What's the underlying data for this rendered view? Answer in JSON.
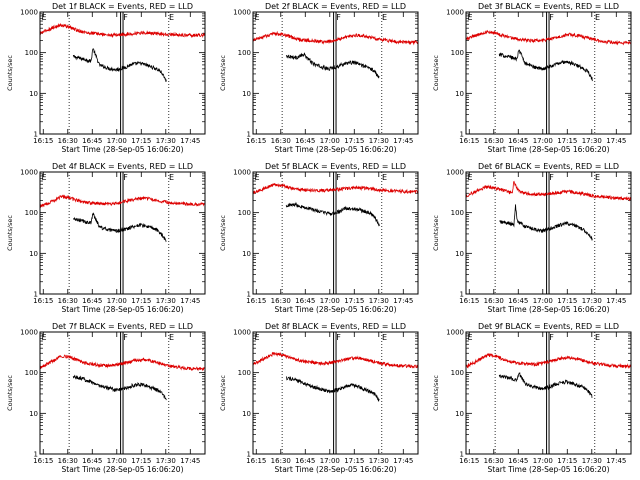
{
  "chart_data": {
    "type": "line",
    "layout": "3x3 grid",
    "common": {
      "ylabel": "Counts/sec",
      "xlabel": "Start Time (28-Sep-05 16:06:20)",
      "yscale": "log",
      "ylim": [
        1,
        1000
      ],
      "xlim_min": [
        6.67,
        107.67
      ],
      "y_ticks": [
        1,
        10,
        100,
        1000
      ],
      "y_tick_labels": [
        "1",
        "10",
        "100",
        "1000"
      ],
      "x_ticks_min": [
        8.67,
        23.67,
        38.67,
        53.67,
        68.67,
        83.67,
        98.67
      ],
      "x_tick_labels": [
        "16:15",
        "16:30",
        "16:45",
        "17:00",
        "17:15",
        "17:30",
        "17:45"
      ],
      "dotted_lines_min": [
        24.5,
        85.5
      ],
      "solid_lines_min": [
        56.0,
        57.5
      ],
      "markers": [
        {
          "label": "E",
          "min": 7.0
        },
        {
          "label": "F",
          "min": 57.0
        },
        {
          "label": "E",
          "min": 85.0
        }
      ],
      "series_colors": {
        "events": "#000000",
        "lld": "#dd0000"
      },
      "events_range_min": [
        27,
        84
      ],
      "lld_range_min": [
        6.67,
        107.67
      ]
    },
    "panels": [
      {
        "title": "Det 1f BLACK = Events, RED = LLD",
        "series": [
          {
            "name": "Events",
            "x": [
              27,
              33,
              38,
              39,
              43,
              48,
              53,
              58,
              63,
              68,
              73,
              78,
              81,
              84
            ],
            "y": [
              80,
              70,
              62,
              130,
              50,
              42,
              38,
              42,
              52,
              55,
              48,
              40,
              33,
              20
            ]
          },
          {
            "name": "LLD",
            "x": [
              6.67,
              15,
              20,
              25,
              30,
              35,
              40,
              45,
              50,
              55,
              60,
              65,
              70,
              75,
              80,
              85,
              90,
              95,
              100,
              107.67
            ],
            "y": [
              300,
              420,
              480,
              420,
              350,
              310,
              300,
              280,
              270,
              275,
              285,
              300,
              310,
              305,
              290,
              280,
              275,
              270,
              270,
              270
            ]
          }
        ]
      },
      {
        "title": "Det 2f BLACK = Events, RED = LLD",
        "series": [
          {
            "name": "Events",
            "x": [
              27,
              33,
              38,
              43,
              48,
              53,
              58,
              63,
              68,
              73,
              78,
              81,
              84
            ],
            "y": [
              85,
              75,
              90,
              55,
              45,
              40,
              45,
              55,
              58,
              50,
              42,
              35,
              25
            ]
          },
          {
            "name": "LLD",
            "x": [
              6.67,
              15,
              20,
              25,
              30,
              35,
              40,
              45,
              50,
              55,
              60,
              65,
              70,
              75,
              80,
              85,
              90,
              95,
              100,
              107.67
            ],
            "y": [
              200,
              260,
              300,
              280,
              240,
              210,
              200,
              190,
              185,
              195,
              220,
              250,
              270,
              255,
              230,
              210,
              195,
              185,
              180,
              180
            ]
          }
        ]
      },
      {
        "title": "Det 3f BLACK = Events, RED = LLD",
        "series": [
          {
            "name": "Events",
            "x": [
              27,
              33,
              38,
              39,
              43,
              48,
              53,
              58,
              63,
              68,
              73,
              78,
              81,
              84
            ],
            "y": [
              90,
              80,
              70,
              120,
              55,
              45,
              40,
              45,
              55,
              60,
              52,
              42,
              35,
              22
            ]
          },
          {
            "name": "LLD",
            "x": [
              6.67,
              15,
              20,
              25,
              30,
              35,
              40,
              45,
              50,
              55,
              60,
              65,
              70,
              75,
              80,
              85,
              90,
              95,
              100,
              107.67
            ],
            "y": [
              220,
              290,
              330,
              300,
              260,
              230,
              210,
              200,
              195,
              205,
              230,
              260,
              280,
              265,
              235,
              210,
              190,
              180,
              175,
              175
            ]
          }
        ]
      },
      {
        "title": "Det 4f BLACK = Events, RED = LLD",
        "series": [
          {
            "name": "Events",
            "x": [
              27,
              33,
              38,
              39,
              43,
              48,
              53,
              58,
              63,
              68,
              73,
              78,
              81,
              84
            ],
            "y": [
              70,
              62,
              55,
              100,
              45,
              38,
              35,
              38,
              45,
              50,
              45,
              38,
              30,
              20
            ]
          },
          {
            "name": "LLD",
            "x": [
              6.67,
              15,
              20,
              25,
              30,
              35,
              40,
              45,
              50,
              55,
              60,
              65,
              70,
              75,
              80,
              85,
              90,
              95,
              100,
              107.67
            ],
            "y": [
              140,
              200,
              250,
              230,
              200,
              180,
              170,
              165,
              165,
              175,
              195,
              215,
              225,
              215,
              195,
              180,
              170,
              165,
              160,
              160
            ]
          }
        ]
      },
      {
        "title": "Det 5f BLACK = Events, RED = LLD",
        "series": [
          {
            "name": "Events",
            "x": [
              27,
              33,
              38,
              43,
              48,
              53,
              58,
              63,
              68,
              73,
              78,
              81,
              84
            ],
            "y": [
              150,
              160,
              135,
              120,
              105,
              95,
              100,
              125,
              125,
              115,
              100,
              80,
              50
            ]
          },
          {
            "name": "LLD",
            "x": [
              6.67,
              15,
              20,
              25,
              30,
              35,
              40,
              45,
              50,
              55,
              60,
              65,
              70,
              75,
              80,
              85,
              90,
              95,
              100,
              107.67
            ],
            "y": [
              300,
              420,
              500,
              460,
              400,
              370,
              360,
              350,
              350,
              360,
              380,
              400,
              410,
              400,
              380,
              360,
              350,
              340,
              330,
              330
            ]
          }
        ]
      },
      {
        "title": "Det 6f BLACK = Events, RED = LLD",
        "series": [
          {
            "name": "Events",
            "x": [
              27,
              33,
              36,
              37,
              38,
              43,
              48,
              53,
              58,
              63,
              68,
              73,
              78,
              81,
              84
            ],
            "y": [
              60,
              55,
              50,
              150,
              65,
              45,
              40,
              35,
              40,
              48,
              55,
              48,
              40,
              32,
              22
            ]
          },
          {
            "name": "LLD",
            "x": [
              6.67,
              15,
              20,
              25,
              30,
              35,
              36,
              38,
              40,
              45,
              50,
              55,
              60,
              65,
              70,
              75,
              80,
              85,
              90,
              95,
              100,
              107.67
            ],
            "y": [
              260,
              370,
              430,
              400,
              350,
              300,
              600,
              380,
              320,
              290,
              280,
              285,
              300,
              320,
              330,
              310,
              280,
              260,
              245,
              235,
              225,
              220
            ]
          }
        ]
      },
      {
        "title": "Det 7f BLACK = Events, RED = LLD",
        "series": [
          {
            "name": "Events",
            "x": [
              27,
              33,
              38,
              43,
              48,
              53,
              58,
              63,
              68,
              73,
              78,
              81,
              84
            ],
            "y": [
              80,
              70,
              60,
              48,
              42,
              38,
              40,
              48,
              52,
              45,
              38,
              32,
              22
            ]
          },
          {
            "name": "LLD",
            "x": [
              6.67,
              15,
              20,
              25,
              30,
              35,
              40,
              45,
              50,
              55,
              60,
              65,
              70,
              75,
              80,
              85,
              90,
              95,
              100,
              107.67
            ],
            "y": [
              130,
              200,
              260,
              240,
              200,
              170,
              160,
              150,
              150,
              160,
              180,
              200,
              210,
              195,
              170,
              150,
              140,
              130,
              125,
              125
            ]
          }
        ]
      },
      {
        "title": "Det 8f BLACK = Events, RED = LLD",
        "series": [
          {
            "name": "Events",
            "x": [
              27,
              33,
              38,
              43,
              48,
              53,
              58,
              63,
              68,
              73,
              78,
              81,
              84
            ],
            "y": [
              75,
              65,
              55,
              45,
              40,
              35,
              38,
              45,
              50,
              42,
              35,
              30,
              20
            ]
          },
          {
            "name": "LLD",
            "x": [
              6.67,
              15,
              20,
              25,
              30,
              35,
              40,
              45,
              50,
              55,
              60,
              65,
              70,
              75,
              80,
              85,
              90,
              95,
              100,
              107.67
            ],
            "y": [
              160,
              240,
              300,
              270,
              230,
              200,
              185,
              175,
              170,
              180,
              200,
              220,
              230,
              215,
              190,
              170,
              160,
              150,
              145,
              145
            ]
          }
        ]
      },
      {
        "title": "Det 9f BLACK = Events, RED = LLD",
        "series": [
          {
            "name": "Events",
            "x": [
              27,
              33,
              38,
              39,
              43,
              48,
              53,
              58,
              63,
              68,
              73,
              78,
              81,
              84
            ],
            "y": [
              85,
              75,
              65,
              100,
              52,
              45,
              40,
              45,
              55,
              60,
              52,
              45,
              38,
              25
            ]
          },
          {
            "name": "LLD",
            "x": [
              6.67,
              15,
              20,
              25,
              30,
              35,
              40,
              45,
              50,
              55,
              60,
              65,
              70,
              75,
              80,
              85,
              90,
              95,
              100,
              107.67
            ],
            "y": [
              140,
              210,
              270,
              250,
              210,
              180,
              170,
              160,
              160,
              175,
              200,
              225,
              235,
              215,
              190,
              170,
              160,
              150,
              145,
              145
            ]
          }
        ]
      }
    ]
  }
}
